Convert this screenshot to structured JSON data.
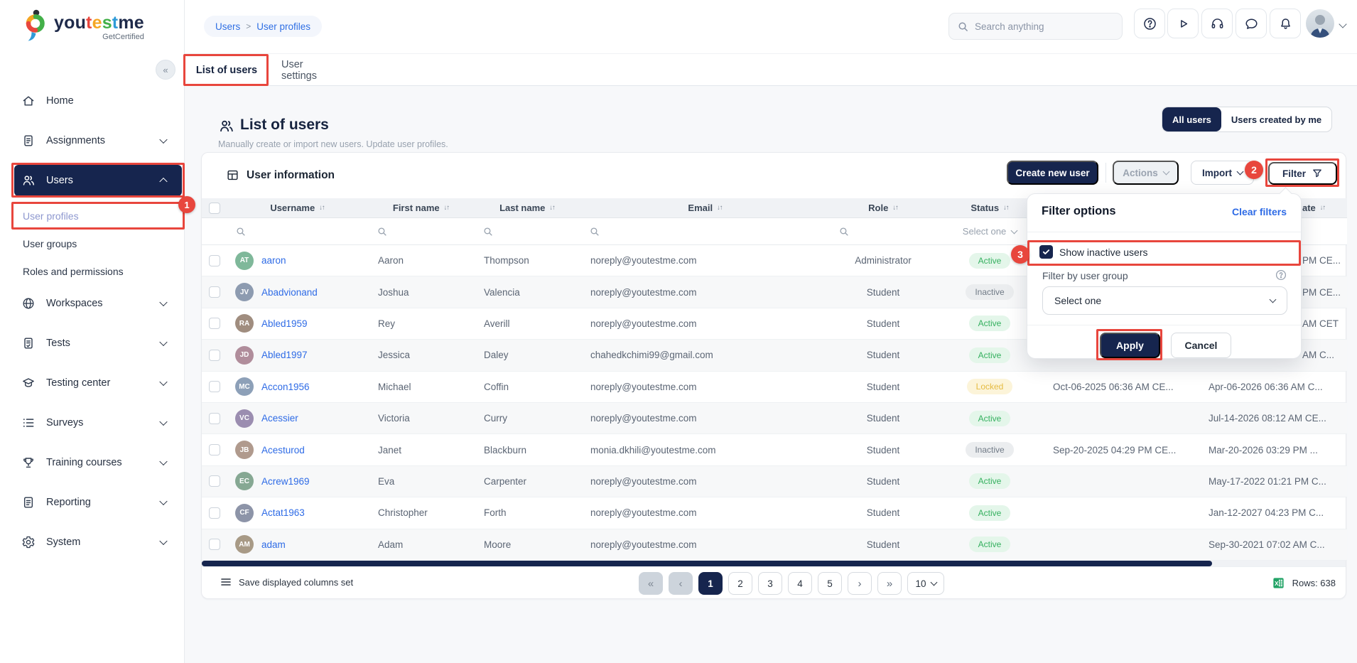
{
  "brand": {
    "segments": [
      {
        "t": "you",
        "c": "#1e2a4a"
      },
      {
        "t": "t",
        "c": "#e8463d"
      },
      {
        "t": "e",
        "c": "#f5a623"
      },
      {
        "t": "s",
        "c": "#43b049"
      },
      {
        "t": "t",
        "c": "#2f9bd8"
      },
      {
        "t": "me",
        "c": "#1e2a4a"
      }
    ],
    "tagline": "GetCertified",
    "collapse_glyph": "«"
  },
  "sidebar": {
    "items": [
      {
        "label": "Home",
        "icon": "home"
      },
      {
        "label": "Assignments",
        "icon": "assignments",
        "chevron": "down"
      },
      {
        "label": "Users",
        "icon": "users",
        "chevron": "up",
        "active": true
      },
      {
        "label": "User profiles",
        "type": "sub",
        "selected": true
      },
      {
        "label": "User groups",
        "type": "sub"
      },
      {
        "label": "Roles and permissions",
        "type": "sub"
      },
      {
        "label": "Workspaces",
        "icon": "workspaces",
        "chevron": "down"
      },
      {
        "label": "Tests",
        "icon": "tests",
        "chevron": "down"
      },
      {
        "label": "Testing center",
        "icon": "testing-center",
        "chevron": "down"
      },
      {
        "label": "Surveys",
        "icon": "surveys",
        "chevron": "down"
      },
      {
        "label": "Training courses",
        "icon": "training-courses",
        "chevron": "down"
      },
      {
        "label": "Reporting",
        "icon": "reporting",
        "chevron": "down"
      },
      {
        "label": "System",
        "icon": "system",
        "chevron": "down"
      }
    ]
  },
  "topbar": {
    "breadcrumb": {
      "first": "Users",
      "sep": ">",
      "second": "User profiles"
    },
    "search_placeholder": "Search anything",
    "icons": [
      "help",
      "play",
      "headset",
      "chat",
      "bell"
    ]
  },
  "tabs": [
    {
      "label": "List of users",
      "active": true
    },
    {
      "label": "User settings"
    }
  ],
  "page": {
    "title": "List of users",
    "subtitle": "Manually create or import new users. Update user profiles.",
    "toggle_all": "All users",
    "toggle_mine": "Users created by me"
  },
  "panel": {
    "title": "User information",
    "create_label": "Create new user",
    "actions_label": "Actions",
    "import_label": "Import",
    "filter_label": "Filter"
  },
  "table": {
    "columns": [
      {
        "label": "Username",
        "sort": true
      },
      {
        "label": "First name",
        "sort": true
      },
      {
        "label": "Last name",
        "sort": true
      },
      {
        "label": "Email",
        "sort": true
      },
      {
        "label": "Role",
        "sort": true
      },
      {
        "label": "Status",
        "sort": true
      },
      {
        "label": "",
        "sort": false,
        "note": "header hidden behind filter popup"
      },
      {
        "label": "ate",
        "sort": true,
        "partial": true
      }
    ],
    "status_filter_placeholder": "Select one",
    "rows": [
      {
        "username": "aaron",
        "first": "Aaron",
        "last": "Thompson",
        "email": "noreply@youtestme.com",
        "role": "Administrator",
        "status": "Active",
        "date1": "",
        "date2": "PM CE...",
        "clipped": true,
        "avatar_bg": "#7fb89a"
      },
      {
        "username": "Abadvionand",
        "first": "Joshua",
        "last": "Valencia",
        "email": "noreply@youtestme.com",
        "role": "Student",
        "status": "Inactive",
        "date1": "",
        "date2": "PM CE...",
        "clipped": true,
        "avatar_bg": "#8d9bb0"
      },
      {
        "username": "Abled1959",
        "first": "Rey",
        "last": "Averill",
        "email": "noreply@youtestme.com",
        "role": "Student",
        "status": "Active",
        "date1": "",
        "date2": "AM CET",
        "clipped": true,
        "avatar_bg": "#a08d7f"
      },
      {
        "username": "Abled1997",
        "first": "Jessica",
        "last": "Daley",
        "email": "chahedkchimi99@gmail.com",
        "role": "Student",
        "status": "Active",
        "date1": "",
        "date2": "AM C...",
        "clipped": true,
        "avatar_bg": "#b08d9b"
      },
      {
        "username": "Accon1956",
        "first": "Michael",
        "last": "Coffin",
        "email": "noreply@youtestme.com",
        "role": "Student",
        "status": "Locked",
        "date1": "Oct-06-2025 06:36 AM CE...",
        "date2": "Apr-06-2026 06:36 AM C...",
        "clipped": false,
        "avatar_bg": "#8da0b8"
      },
      {
        "username": "Acessier",
        "first": "Victoria",
        "last": "Curry",
        "email": "noreply@youtestme.com",
        "role": "Student",
        "status": "Active",
        "date1": "",
        "date2": "Jul-14-2026 08:12 AM CE...",
        "clipped": false,
        "avatar_bg": "#9b8db0"
      },
      {
        "username": "Acesturod",
        "first": "Janet",
        "last": "Blackburn",
        "email": "monia.dkhili@youtestme.com",
        "role": "Student",
        "status": "Inactive",
        "date1": "Sep-20-2025 04:29 PM CE...",
        "date2": "Mar-20-2026 03:29 PM ...",
        "clipped": false,
        "avatar_bg": "#b09a8d"
      },
      {
        "username": "Acrew1969",
        "first": "Eva",
        "last": "Carpenter",
        "email": "noreply@youtestme.com",
        "role": "Student",
        "status": "Active",
        "date1": "",
        "date2": "May-17-2022 01:21 PM C...",
        "clipped": false,
        "avatar_bg": "#86a893"
      },
      {
        "username": "Actat1963",
        "first": "Christopher",
        "last": "Forth",
        "email": "noreply@youtestme.com",
        "role": "Student",
        "status": "Active",
        "date1": "",
        "date2": "Jan-12-2027 04:23 PM C...",
        "clipped": false,
        "avatar_bg": "#8d94a8"
      },
      {
        "username": "adam",
        "first": "Adam",
        "last": "Moore",
        "email": "noreply@youtestme.com",
        "role": "Student",
        "status": "Active",
        "date1": "",
        "date2": "Sep-30-2021 07:02 AM C...",
        "clipped": false,
        "avatar_bg": "#a89a86"
      }
    ]
  },
  "footer": {
    "save_columns_label": "Save displayed columns set",
    "pagination": {
      "first_glyph": "«",
      "prev_glyph": "‹",
      "pages": [
        "1",
        "2",
        "3",
        "4",
        "5"
      ],
      "current": "1",
      "next_glyph": "›",
      "last_glyph": "»",
      "page_size": "10"
    },
    "rows_label": "Rows: 638"
  },
  "filter_popup": {
    "title": "Filter options",
    "clear_label": "Clear filters",
    "show_inactive_label": "Show inactive users",
    "show_inactive_checked": true,
    "group_label": "Filter by user group",
    "group_placeholder": "Select one",
    "apply_label": "Apply",
    "cancel_label": "Cancel"
  },
  "annotations": {
    "color": "#e8463d",
    "badge1": "1",
    "badge2": "2",
    "badge3": "3"
  },
  "colors": {
    "navy": "#16254e",
    "link_blue": "#2e6be6",
    "active_green": "#35b05f",
    "locked_amber": "#e5bb42",
    "inactive_gray": "#707a86"
  }
}
